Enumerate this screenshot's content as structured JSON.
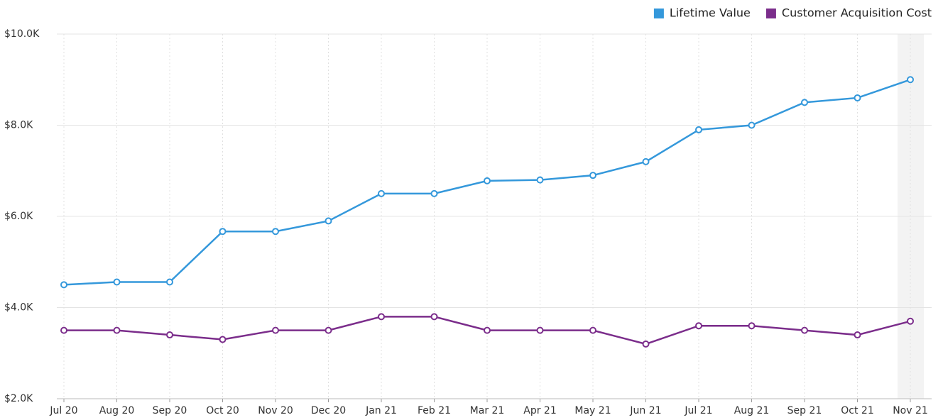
{
  "chart_data": {
    "type": "line",
    "categories": [
      "Jul 20",
      "Aug 20",
      "Sep 20",
      "Oct 20",
      "Nov 20",
      "Dec 20",
      "Jan 21",
      "Feb 21",
      "Mar 21",
      "Apr 21",
      "May 21",
      "Jun 21",
      "Jul 21",
      "Aug 21",
      "Sep 21",
      "Oct 21",
      "Nov 21"
    ],
    "series": [
      {
        "name": "Lifetime Value",
        "color": "#3498db",
        "values": [
          4500,
          4560,
          4560,
          5670,
          5670,
          5900,
          6500,
          6500,
          6780,
          6800,
          6900,
          7200,
          7900,
          8000,
          8500,
          8600,
          9000
        ]
      },
      {
        "name": "Customer Acquisition Cost",
        "color": "#7b2d8b",
        "values": [
          3500,
          3500,
          3400,
          3300,
          3500,
          3500,
          3800,
          3800,
          3500,
          3500,
          3500,
          3200,
          3600,
          3600,
          3500,
          3400,
          3700
        ]
      }
    ],
    "ylim": [
      2000,
      10000
    ],
    "yticks": [
      {
        "value": 2000,
        "label": "$2.0K"
      },
      {
        "value": 4000,
        "label": "$4.0K"
      },
      {
        "value": 6000,
        "label": "$6.0K"
      },
      {
        "value": 8000,
        "label": "$8.0K"
      },
      {
        "value": 10000,
        "label": "$10.0K"
      }
    ],
    "grid": true,
    "legend": "top-right"
  }
}
